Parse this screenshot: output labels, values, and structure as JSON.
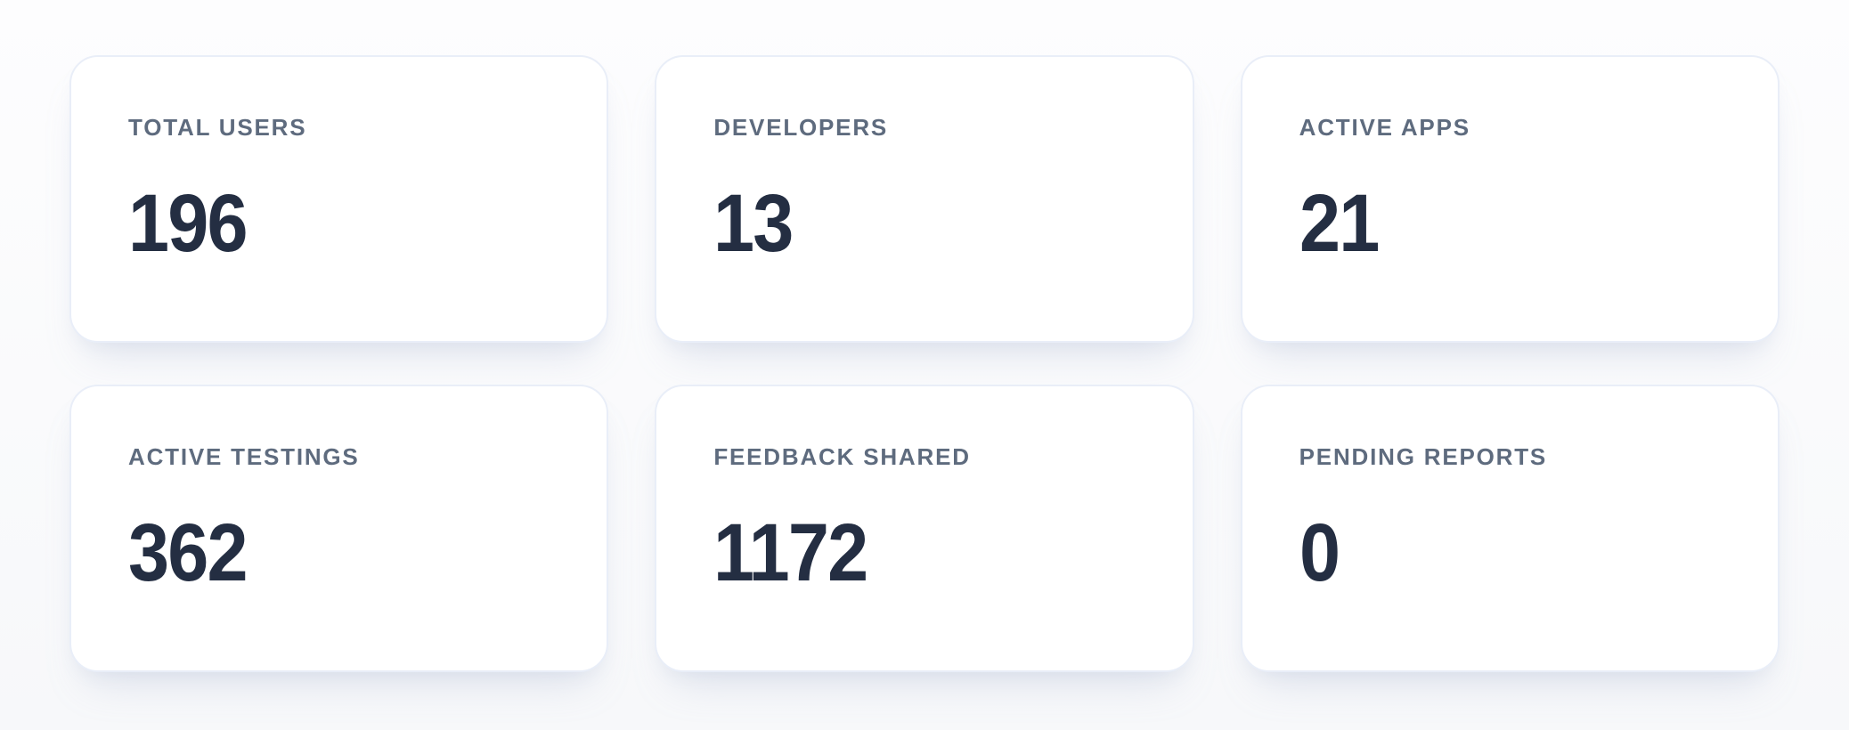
{
  "colors": {
    "page_bg_top": "#fdfdfe",
    "page_bg_bottom": "#f7f8fa",
    "card_bg": "#ffffff",
    "card_border": "#e9eef8",
    "label": "#5e6b7e",
    "value": "#242e42"
  },
  "stats": [
    {
      "id": "total-users",
      "label": "TOTAL USERS",
      "value": "196"
    },
    {
      "id": "developers",
      "label": "DEVELOPERS",
      "value": "13"
    },
    {
      "id": "active-apps",
      "label": "ACTIVE APPS",
      "value": "21"
    },
    {
      "id": "active-testings",
      "label": "ACTIVE TESTINGS",
      "value": "362"
    },
    {
      "id": "feedback-shared",
      "label": "FEEDBACK SHARED",
      "value": "1172"
    },
    {
      "id": "pending-reports",
      "label": "PENDING REPORTS",
      "value": "0"
    }
  ]
}
